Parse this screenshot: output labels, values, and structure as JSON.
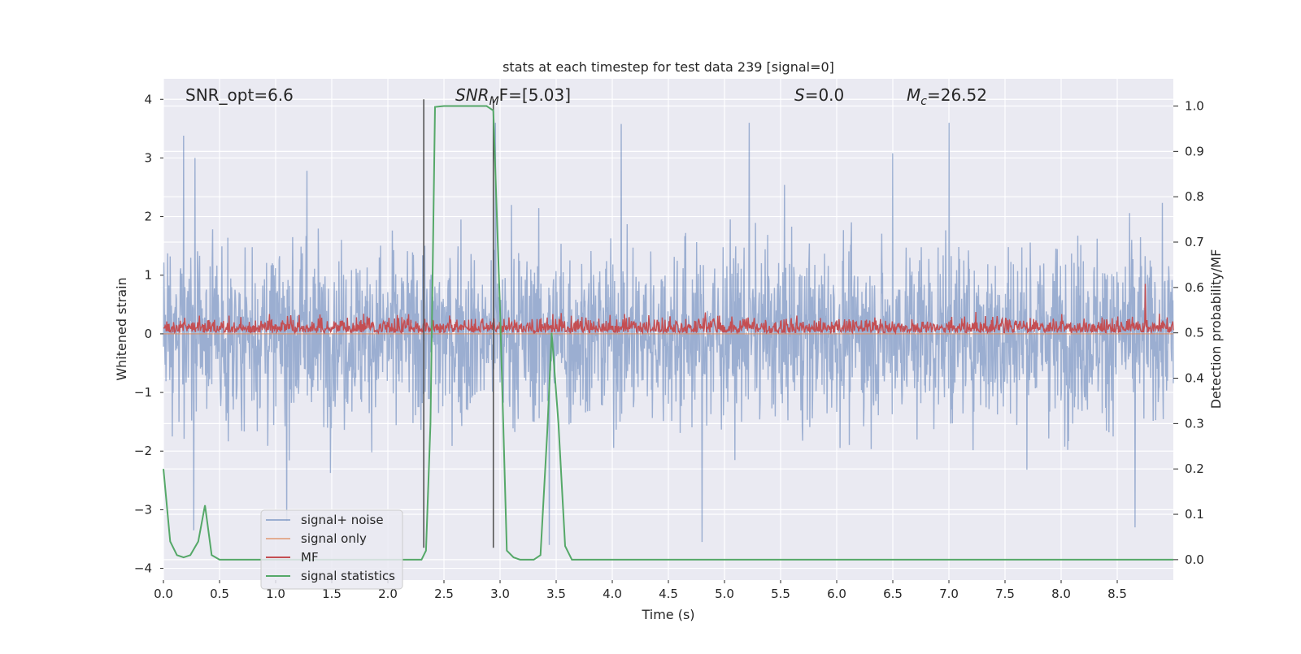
{
  "chart_data": {
    "type": "line",
    "title": "stats at each timestep for test data 239 [signal=0]",
    "xlabel": "Time (s)",
    "ylabel": "Whitened strain",
    "ylabel_right": "Detection probability/MF",
    "xlim": [
      0,
      9.0
    ],
    "ylim": [
      -4.2,
      4.35
    ],
    "ylim_right": [
      -0.045,
      1.06
    ],
    "x_ticks": [
      "0.0",
      "0.5",
      "1.0",
      "1.5",
      "2.0",
      "2.5",
      "3.0",
      "3.5",
      "4.0",
      "4.5",
      "5.0",
      "5.5",
      "6.0",
      "6.5",
      "7.0",
      "7.5",
      "8.0",
      "8.5"
    ],
    "x_tick_values": [
      0,
      0.5,
      1.0,
      1.5,
      2.0,
      2.5,
      3.0,
      3.5,
      4.0,
      4.5,
      5.0,
      5.5,
      6.0,
      6.5,
      7.0,
      7.5,
      8.0,
      8.5
    ],
    "y_ticks": [
      "4",
      "3",
      "2",
      "1",
      "0",
      "−1",
      "−2",
      "−3",
      "−4"
    ],
    "y_tick_values": [
      4,
      3,
      2,
      1,
      0,
      -1,
      -2,
      -3,
      -4
    ],
    "y2_ticks": [
      "1.0",
      "0.9",
      "0.8",
      "0.7",
      "0.6",
      "0.5",
      "0.4",
      "0.3",
      "0.2",
      "0.1",
      "0.0"
    ],
    "y2_tick_values": [
      1.0,
      0.9,
      0.8,
      0.7,
      0.6,
      0.5,
      0.4,
      0.3,
      0.2,
      0.1,
      0.0
    ],
    "grid": true,
    "legend_position": "lower-left",
    "annotations": {
      "snr_opt": "SNR_opt=6.6",
      "snr_mf_main": "SNR",
      "snr_mf_sub": "M",
      "snr_mf_rest": "F=[5.03]",
      "s_main": "S",
      "s_rest": "=0.0",
      "mc_main": "M",
      "mc_sub": "c",
      "mc_rest": "=26.52"
    },
    "vertical_lines_x": [
      2.32,
      2.94
    ],
    "vertical_lines_y_range": [
      -3.65,
      4.0
    ],
    "series": [
      {
        "name": "signal+ noise",
        "color": "#4c72b0",
        "kind": "noise",
        "envelope_y": [
          -3.6,
          3.6
        ],
        "notable_peaks": [
          {
            "x": 0.18,
            "y": 3.38
          },
          {
            "x": 0.28,
            "y": 3.0
          },
          {
            "x": 1.28,
            "y": 2.78
          },
          {
            "x": 2.96,
            "y": 3.8
          },
          {
            "x": 3.1,
            "y": 2.2
          },
          {
            "x": 4.08,
            "y": 3.58
          },
          {
            "x": 5.22,
            "y": 4.0
          },
          {
            "x": 7.0,
            "y": 3.62
          },
          {
            "x": 6.5,
            "y": 3.08
          },
          {
            "x": 4.8,
            "y": -3.55
          },
          {
            "x": 3.44,
            "y": -3.65
          },
          {
            "x": 8.66,
            "y": -3.3
          },
          {
            "x": 1.1,
            "y": -3.2
          },
          {
            "x": 0.27,
            "y": -3.35
          }
        ]
      },
      {
        "name": "signal only",
        "color": "#dd8452",
        "kind": "flat",
        "value": 0.0
      },
      {
        "name": "MF",
        "color": "#c44e52",
        "kind": "mf",
        "baseline_right": 0.5,
        "range_right": [
          0.495,
          0.62
        ],
        "notable_peaks": [
          {
            "x": 8.75,
            "y": 0.608
          }
        ]
      },
      {
        "name": "signal statistics",
        "color": "#55a868",
        "kind": "curve",
        "x": [
          0.0,
          0.06,
          0.12,
          0.18,
          0.24,
          0.31,
          0.37,
          0.43,
          0.5,
          2.24,
          2.3,
          2.34,
          2.38,
          2.42,
          2.5,
          2.7,
          2.88,
          2.94,
          3.0,
          3.06,
          3.12,
          3.18,
          3.3,
          3.36,
          3.42,
          3.46,
          3.52,
          3.58,
          3.64,
          9.0
        ],
        "y": [
          0.2,
          0.04,
          0.01,
          0.005,
          0.01,
          0.04,
          0.12,
          0.01,
          0.0,
          0.0,
          0.0,
          0.02,
          0.3,
          0.998,
          1.0,
          1.0,
          1.0,
          0.99,
          0.55,
          0.02,
          0.005,
          0.0,
          0.0,
          0.01,
          0.28,
          0.5,
          0.3,
          0.03,
          0.0,
          0.0
        ]
      }
    ]
  }
}
